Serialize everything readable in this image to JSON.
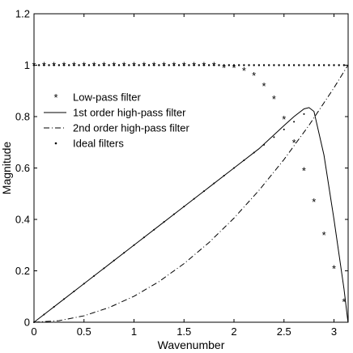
{
  "chart_data": {
    "type": "line",
    "xlabel": "Wavenumber",
    "ylabel": "Magnitude",
    "xlim": [
      0,
      3.14159
    ],
    "ylim": [
      0,
      1.2
    ],
    "xticks": [
      0,
      0.5,
      1,
      1.5,
      2,
      2.5,
      3
    ],
    "yticks": [
      0,
      0.2,
      0.4,
      0.6,
      0.8,
      1,
      1.2
    ],
    "xtick_labels": [
      "0",
      "0.5",
      "1",
      "1.5",
      "2",
      "2.5",
      "3"
    ],
    "ytick_labels": [
      "0",
      "0.2",
      "0.4",
      "0.6",
      "0.8",
      "1",
      "1.2"
    ],
    "grid": false,
    "legend_position": "left",
    "series": [
      {
        "name": "Low-pass filter",
        "style": "star-markers",
        "x": [
          0.0,
          0.1,
          0.2,
          0.3,
          0.4,
          0.5,
          0.6,
          0.7,
          0.8,
          0.9,
          1.0,
          1.1,
          1.2,
          1.3,
          1.4,
          1.5,
          1.6,
          1.7,
          1.8,
          1.9,
          2.0,
          2.1,
          2.2,
          2.3,
          2.4,
          2.5,
          2.6,
          2.7,
          2.8,
          2.9,
          3.0,
          3.1
        ],
        "y": [
          1.0,
          1.0,
          1.0,
          1.0,
          1.0,
          1.0,
          1.0,
          1.0,
          1.0,
          1.0,
          1.0,
          1.0,
          1.0,
          1.0,
          1.0,
          1.0,
          1.0,
          1.0,
          1.0,
          0.99,
          0.99,
          0.98,
          0.96,
          0.92,
          0.87,
          0.79,
          0.7,
          0.59,
          0.47,
          0.34,
          0.21,
          0.08
        ]
      },
      {
        "name": "1st order high-pass filter",
        "style": "solid",
        "x": [
          0.0,
          0.25,
          0.5,
          0.75,
          1.0,
          1.25,
          1.5,
          1.75,
          2.0,
          2.25,
          2.5,
          2.6,
          2.7,
          2.75,
          2.8,
          2.9,
          3.0,
          3.1,
          3.14
        ],
        "y": [
          0.0,
          0.075,
          0.15,
          0.225,
          0.3,
          0.375,
          0.45,
          0.525,
          0.6,
          0.675,
          0.765,
          0.8,
          0.83,
          0.835,
          0.82,
          0.65,
          0.4,
          0.13,
          0.0
        ]
      },
      {
        "name": "2nd order high-pass filter",
        "style": "dash-dot",
        "x": [
          0.0,
          0.25,
          0.5,
          0.75,
          1.0,
          1.25,
          1.5,
          1.75,
          2.0,
          2.25,
          2.5,
          2.75,
          3.0,
          3.14
        ],
        "y": [
          0.0,
          0.006,
          0.025,
          0.057,
          0.101,
          0.158,
          0.228,
          0.31,
          0.405,
          0.513,
          0.633,
          0.766,
          0.912,
          1.0
        ]
      },
      {
        "name": "Ideal filters",
        "style": "dots",
        "x": [
          0.0,
          0.05,
          0.1,
          0.15,
          0.2,
          0.25,
          0.3,
          0.35,
          0.4,
          0.45,
          0.5,
          0.55,
          0.6,
          0.65,
          0.7,
          0.75,
          0.8,
          0.85,
          0.9,
          0.95,
          1.0,
          1.05,
          1.1,
          1.15,
          1.2,
          1.25,
          1.3,
          1.35,
          1.4,
          1.45,
          1.5,
          1.55,
          1.6,
          1.65,
          1.7,
          1.75,
          1.8,
          1.85,
          1.9,
          1.95,
          2.0,
          2.05,
          2.1,
          2.15,
          2.2,
          2.25,
          2.3,
          2.35,
          2.4,
          2.45,
          2.5,
          2.55,
          2.6,
          2.65,
          2.7,
          2.75,
          2.8,
          2.85,
          2.9,
          2.95,
          3.0,
          3.05,
          3.1
        ],
        "y": [
          1,
          1,
          1,
          1,
          1,
          1,
          1,
          1,
          1,
          1,
          1,
          1,
          1,
          1,
          1,
          1,
          1,
          1,
          1,
          1,
          1,
          1,
          1,
          1,
          1,
          1,
          1,
          1,
          1,
          1,
          1,
          1,
          1,
          1,
          1,
          1,
          1,
          1,
          1,
          1,
          1,
          1,
          1,
          1,
          1,
          1,
          1,
          1,
          1,
          1,
          1,
          1,
          1,
          1,
          1,
          1,
          1,
          1,
          1,
          1,
          1,
          1,
          1
        ],
        "x_ramp": [
          0.0,
          0.1,
          0.2,
          0.3,
          0.4,
          0.5,
          0.6,
          0.7,
          0.8,
          0.9,
          1.0,
          1.1,
          1.2,
          1.3,
          1.4,
          1.5,
          1.6,
          1.7,
          1.8,
          1.9,
          2.0,
          2.1,
          2.2,
          2.3,
          2.4,
          2.5,
          2.6,
          2.7
        ],
        "y_ramp": [
          0.0,
          0.03,
          0.06,
          0.09,
          0.12,
          0.15,
          0.18,
          0.21,
          0.24,
          0.27,
          0.3,
          0.33,
          0.36,
          0.39,
          0.42,
          0.45,
          0.48,
          0.51,
          0.54,
          0.57,
          0.6,
          0.63,
          0.66,
          0.69,
          0.72,
          0.75,
          0.78,
          0.81
        ]
      }
    ]
  }
}
